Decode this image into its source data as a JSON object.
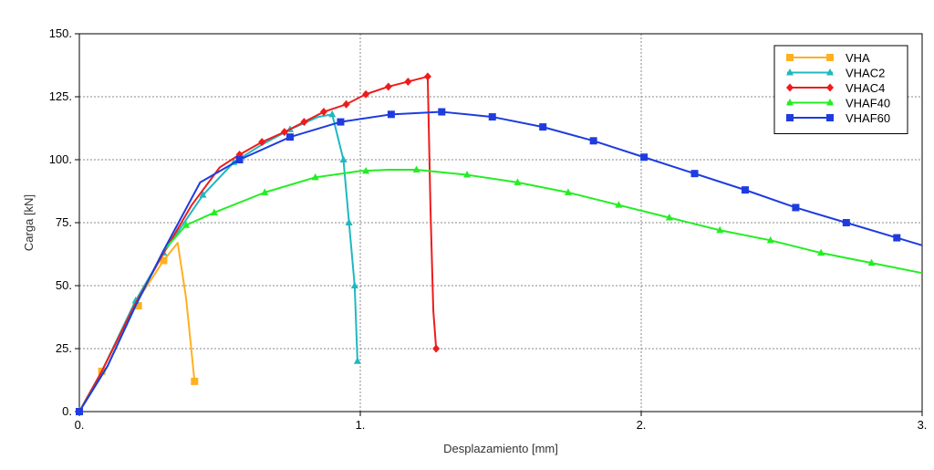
{
  "chart_data": {
    "type": "line",
    "title": "",
    "xlabel": "Desplazamiento [mm]",
    "ylabel": "Carga [kN]",
    "xlim": [
      0,
      3
    ],
    "ylim": [
      0,
      150
    ],
    "x_ticks": [
      0,
      1,
      2,
      3
    ],
    "x_tick_labels": [
      "0.",
      "1.",
      "2.",
      "3."
    ],
    "y_ticks": [
      0,
      25,
      50,
      75,
      100,
      125,
      150
    ],
    "y_tick_labels": [
      "0.",
      "25.",
      "50.",
      "75.",
      "100.",
      "125.",
      "150."
    ],
    "grid": true,
    "legend_position": "top-right",
    "series": [
      {
        "name": "VHA",
        "color": "#FFB020",
        "marker": "square",
        "x": [
          0,
          0.08,
          0.2,
          0.3,
          0.35,
          0.38,
          0.41
        ],
        "y": [
          0,
          16,
          43,
          60,
          67,
          45,
          12
        ],
        "marker_x": [
          0,
          0.08,
          0.21,
          0.3,
          0.41
        ],
        "marker_y": [
          0,
          16,
          42,
          60,
          12
        ]
      },
      {
        "name": "VHAC2",
        "color": "#20B8C0",
        "marker": "triangle",
        "x": [
          0,
          0.08,
          0.2,
          0.3,
          0.44,
          0.55,
          0.65,
          0.75,
          0.85,
          0.9,
          0.94,
          0.96,
          0.98,
          0.99
        ],
        "y": [
          0,
          16,
          44,
          63,
          86,
          99,
          106,
          112,
          117,
          118,
          100,
          75,
          50,
          20
        ],
        "marker_x": [
          0,
          0.2,
          0.3,
          0.44,
          0.55,
          0.75,
          0.9,
          0.94,
          0.96,
          0.98,
          0.99
        ],
        "marker_y": [
          0,
          44,
          63,
          86,
          99,
          112,
          118,
          100,
          75,
          50,
          20
        ]
      },
      {
        "name": "VHAC4",
        "color": "#EE1C1C",
        "marker": "diamond",
        "x": [
          0,
          0.08,
          0.2,
          0.3,
          0.4,
          0.5,
          0.57,
          0.65,
          0.73,
          0.8,
          0.87,
          0.95,
          1.02,
          1.1,
          1.17,
          1.24,
          1.25,
          1.26,
          1.27
        ],
        "y": [
          0,
          16,
          43,
          63,
          82,
          97,
          102,
          107,
          111,
          115,
          119,
          122,
          126,
          129,
          131,
          133,
          80,
          40,
          25
        ],
        "marker_x": [
          0,
          0.57,
          0.65,
          0.73,
          0.8,
          0.87,
          0.95,
          1.02,
          1.1,
          1.17,
          1.24,
          1.27
        ],
        "marker_y": [
          0,
          102,
          107,
          111,
          115,
          119,
          122,
          126,
          129,
          131,
          133,
          25
        ]
      },
      {
        "name": "VHAF40",
        "color": "#22EE22",
        "marker": "triangle",
        "x": [
          0,
          0.1,
          0.2,
          0.3,
          0.38,
          0.48,
          0.66,
          0.84,
          1.0,
          1.1,
          1.2,
          1.38,
          1.56,
          1.74,
          1.92,
          2.1,
          2.28,
          2.46,
          2.64,
          2.82,
          3.0
        ],
        "y": [
          0,
          18,
          42,
          64,
          74,
          79,
          87,
          93,
          95.5,
          96,
          96,
          94,
          91,
          87,
          82,
          77,
          72,
          68,
          63,
          59,
          55
        ],
        "marker_x": [
          0,
          0.38,
          0.48,
          0.66,
          0.84,
          1.02,
          1.2,
          1.38,
          1.56,
          1.74,
          1.92,
          2.1,
          2.28,
          2.46,
          2.64,
          2.82
        ],
        "marker_y": [
          0,
          74,
          79,
          87,
          93,
          95.5,
          96,
          94,
          91,
          87,
          82,
          77,
          72,
          68,
          63,
          59
        ]
      },
      {
        "name": "VHAF60",
        "color": "#1E3CE0",
        "marker": "square",
        "x": [
          0,
          0.1,
          0.2,
          0.3,
          0.43,
          0.57,
          0.75,
          0.93,
          1.11,
          1.29,
          1.47,
          1.65,
          1.83,
          2.01,
          2.19,
          2.37,
          2.55,
          2.73,
          2.91,
          3.0
        ],
        "y": [
          0,
          18,
          42,
          64,
          91,
          100,
          109,
          115,
          118,
          119,
          117,
          113,
          107.5,
          101,
          94.5,
          88,
          81,
          75,
          69,
          66
        ],
        "marker_x": [
          0,
          0.57,
          0.75,
          0.93,
          1.11,
          1.29,
          1.47,
          1.65,
          1.83,
          2.01,
          2.19,
          2.37,
          2.55,
          2.73,
          2.91
        ],
        "marker_y": [
          0,
          100,
          109,
          115,
          118,
          119,
          117,
          113,
          107.5,
          101,
          94.5,
          88,
          81,
          75,
          69
        ]
      }
    ]
  }
}
